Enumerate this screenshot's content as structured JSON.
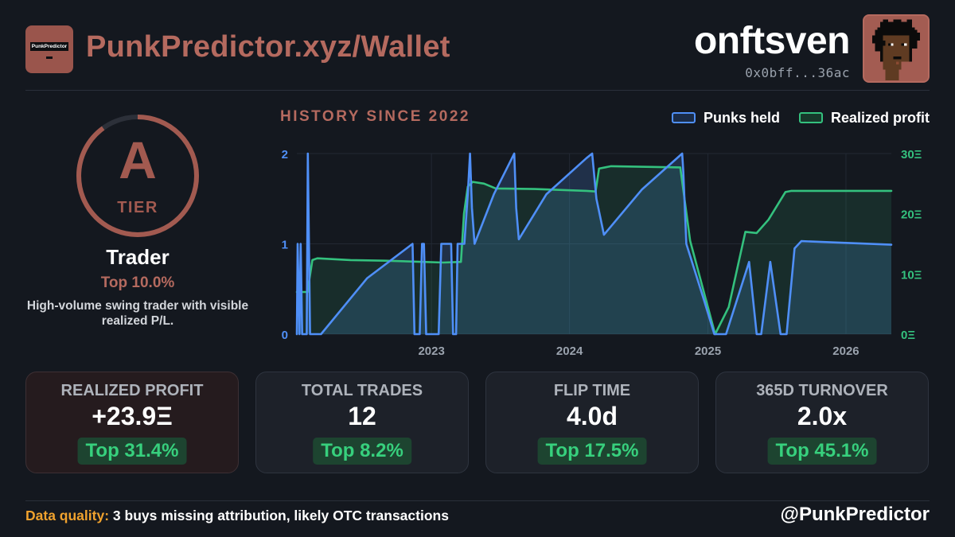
{
  "header": {
    "logo_text": "PunkPredictor",
    "site_title": "PunkPredictor.xyz/Wallet",
    "username": "onftsven",
    "address": "0x0bff...36ac",
    "avatar_icon": "cryptopunk-avatar"
  },
  "tier": {
    "grade": "A",
    "word": "TIER",
    "ring_fraction": 0.9,
    "label": "Trader",
    "top": "Top 10.0%",
    "description": "High-volume swing trader with visible realized P/L."
  },
  "chart": {
    "title": "HISTORY SINCE 2022",
    "legend": [
      {
        "label": "Punks held",
        "color": "#4f8ff7"
      },
      {
        "label": "Realized profit",
        "color": "#34c17e"
      }
    ]
  },
  "chart_data": {
    "type": "line",
    "title": "HISTORY SINCE 2022",
    "x_range": [
      "2022-01-10",
      "2026-05-01"
    ],
    "x_ticks": [
      "2023",
      "2024",
      "2025",
      "2026"
    ],
    "left_axis": {
      "label": "",
      "ticks": [
        "0",
        "1",
        "2"
      ],
      "range": [
        0,
        2
      ]
    },
    "right_axis": {
      "label": "",
      "ticks": [
        "0Ξ",
        "10Ξ",
        "20Ξ",
        "30Ξ"
      ],
      "range": [
        0,
        30
      ]
    },
    "grid": true,
    "series": [
      {
        "name": "Punks held",
        "axis": "left",
        "color": "#4f8ff7",
        "points": [
          [
            "2022-01-10",
            0
          ],
          [
            "2022-01-12",
            1
          ],
          [
            "2022-01-17",
            0
          ],
          [
            "2022-01-20",
            1
          ],
          [
            "2022-01-24",
            0
          ],
          [
            "2022-02-05",
            0
          ],
          [
            "2022-02-08",
            2
          ],
          [
            "2022-02-14",
            0
          ],
          [
            "2022-03-15",
            0
          ],
          [
            "2022-07-15",
            0.62
          ],
          [
            "2022-11-12",
            1.0
          ],
          [
            "2022-11-17",
            0
          ],
          [
            "2022-12-01",
            0
          ],
          [
            "2022-12-07",
            1
          ],
          [
            "2022-12-12",
            1
          ],
          [
            "2022-12-18",
            0
          ],
          [
            "2023-01-20",
            0
          ],
          [
            "2023-01-27",
            1
          ],
          [
            "2023-02-22",
            1
          ],
          [
            "2023-02-27",
            0
          ],
          [
            "2023-03-07",
            0
          ],
          [
            "2023-03-11",
            1
          ],
          [
            "2023-03-29",
            1
          ],
          [
            "2023-04-07",
            1.55
          ],
          [
            "2023-04-13",
            2.0
          ],
          [
            "2023-04-18",
            1.4
          ],
          [
            "2023-04-25",
            1.0
          ],
          [
            "2023-06-15",
            1.55
          ],
          [
            "2023-08-08",
            2.0
          ],
          [
            "2023-08-13",
            1.4
          ],
          [
            "2023-08-20",
            1.05
          ],
          [
            "2023-11-01",
            1.55
          ],
          [
            "2024-02-15",
            1.95
          ],
          [
            "2024-03-01",
            2.0
          ],
          [
            "2024-03-12",
            1.5
          ],
          [
            "2024-04-01",
            1.1
          ],
          [
            "2024-07-10",
            1.6
          ],
          [
            "2024-10-25",
            2.0
          ],
          [
            "2024-10-28",
            1.8
          ],
          [
            "2024-11-05",
            1.0
          ],
          [
            "2024-12-20",
            0.4
          ],
          [
            "2025-01-18",
            0
          ],
          [
            "2025-02-18",
            0
          ],
          [
            "2025-04-20",
            0.8
          ],
          [
            "2025-05-10",
            0
          ],
          [
            "2025-05-22",
            0
          ],
          [
            "2025-06-15",
            0.8
          ],
          [
            "2025-07-12",
            0
          ],
          [
            "2025-07-28",
            0
          ],
          [
            "2025-08-18",
            0.95
          ],
          [
            "2025-09-05",
            1.03
          ],
          [
            "2026-05-01",
            0.99
          ]
        ]
      },
      {
        "name": "Realized profit",
        "axis": "right",
        "color": "#34c17e",
        "points": [
          [
            "2022-01-10",
            7
          ],
          [
            "2022-02-07",
            7
          ],
          [
            "2022-02-20",
            12.3
          ],
          [
            "2022-03-05",
            12.6
          ],
          [
            "2022-06-01",
            12.3
          ],
          [
            "2022-09-01",
            12.2
          ],
          [
            "2023-02-01",
            11.9
          ],
          [
            "2023-03-20",
            12.0
          ],
          [
            "2023-03-28",
            20
          ],
          [
            "2023-04-07",
            24.5
          ],
          [
            "2023-04-20",
            25.3
          ],
          [
            "2023-05-20",
            25.0
          ],
          [
            "2023-06-20",
            24.2
          ],
          [
            "2023-10-01",
            24.1
          ],
          [
            "2024-02-15",
            23.8
          ],
          [
            "2024-03-10",
            23.7
          ],
          [
            "2024-03-19",
            27.5
          ],
          [
            "2024-04-20",
            27.9
          ],
          [
            "2024-10-20",
            27.7
          ],
          [
            "2024-11-15",
            15.5
          ],
          [
            "2025-01-20",
            0
          ],
          [
            "2025-02-25",
            4.5
          ],
          [
            "2025-04-10",
            17
          ],
          [
            "2025-05-10",
            16.8
          ],
          [
            "2025-06-10",
            19
          ],
          [
            "2025-07-25",
            23.6
          ],
          [
            "2025-08-10",
            23.8
          ],
          [
            "2026-05-01",
            23.8
          ]
        ]
      }
    ]
  },
  "stats": [
    {
      "label": "REALIZED PROFIT",
      "value": "+23.9Ξ",
      "badge": "Top 31.4%"
    },
    {
      "label": "TOTAL TRADES",
      "value": "12",
      "badge": "Top 8.2%"
    },
    {
      "label": "FLIP TIME",
      "value": "4.0d",
      "badge": "Top 17.5%"
    },
    {
      "label": "365D TURNOVER",
      "value": "2.0x",
      "badge": "Top 45.1%"
    }
  ],
  "footer": {
    "quality_key": "Data quality:",
    "quality_text": "3 buys missing attribution, likely OTC transactions",
    "handle": "@PunkPredictor"
  },
  "colors": {
    "accent": "#b56a5f",
    "punks_line": "#4f8ff7",
    "profit_line": "#34c17e",
    "badge_text": "#37d07d",
    "warning": "#f0a22e"
  }
}
